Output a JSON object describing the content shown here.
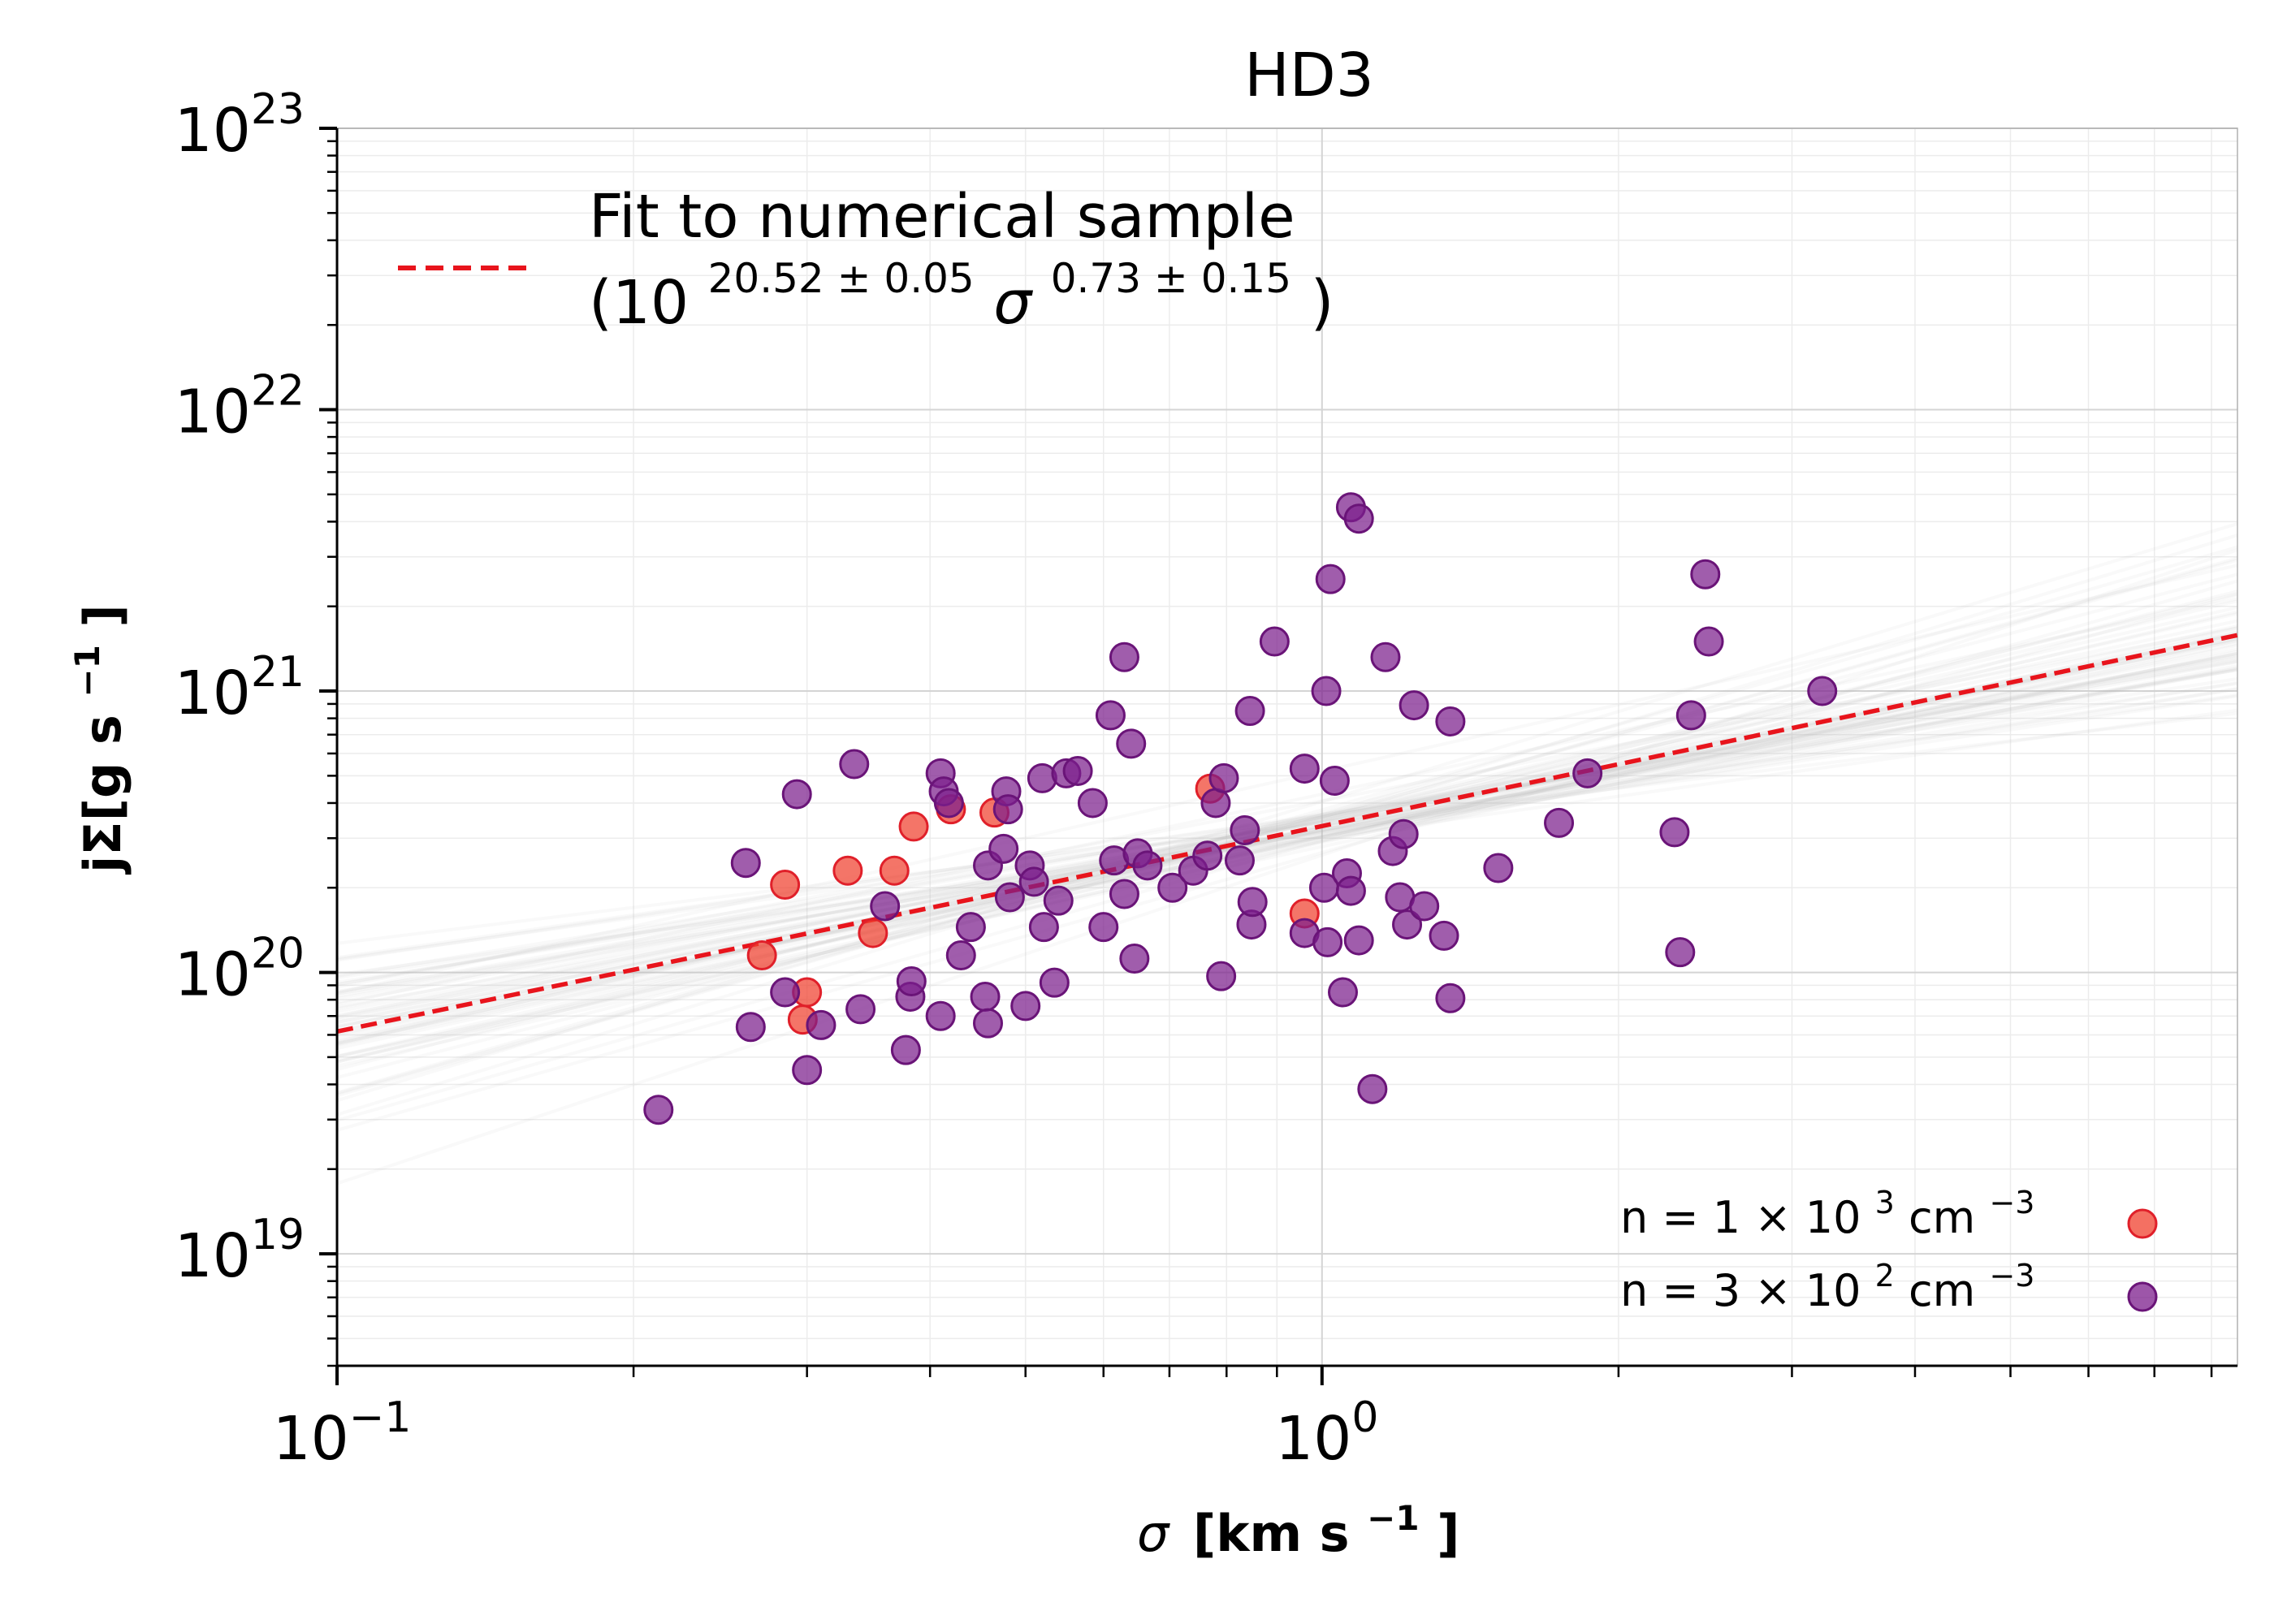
{
  "chart_data": {
    "type": "scatter",
    "title": "HD3",
    "xlabel": {
      "symbol": "σ",
      "unit": "[km s",
      "exp": "−1",
      "close": "]"
    },
    "ylabel": {
      "text": "jΣ[g s",
      "exp": "−1",
      "close": "]"
    },
    "x_scale": "log",
    "y_scale": "log",
    "xlim": [
      0.1,
      8.5
    ],
    "ylim": [
      4e+18,
      1e+23
    ],
    "x_ticks": [
      {
        "value": 0.1,
        "base": "10",
        "exp": "−1"
      },
      {
        "value": 1,
        "base": "10",
        "exp": "0"
      }
    ],
    "y_ticks": [
      {
        "value": 1e+19,
        "base": "10",
        "exp": "19"
      },
      {
        "value": 1e+20,
        "base": "10",
        "exp": "20"
      },
      {
        "value": 1e+21,
        "base": "10",
        "exp": "21"
      },
      {
        "value": 1e+22,
        "base": "10",
        "exp": "22"
      },
      {
        "value": 1e+23,
        "base": "10",
        "exp": "23"
      }
    ],
    "grid": true,
    "fit": {
      "label_line1": "Fit to numerical sample",
      "label_open": "(10",
      "label_exp1": "20.52 ± 0.05",
      "label_sigma": "σ",
      "label_exp2": "0.73 ± 0.15",
      "label_close": ")",
      "log_amplitude": 20.52,
      "slope": 0.73,
      "log_amplitude_err": 0.05,
      "slope_err": 0.15,
      "color": "#e8141c"
    },
    "series": [
      {
        "name": "n = 1 × 10³ cm⁻³",
        "legend": {
          "prefix": "n  = 1 × 10",
          "exp": "3",
          "suffix": " cm",
          "suffix_exp": "−3"
        },
        "color": "#f0402e",
        "points": [
          [
            0.27,
            1.15e+20
          ],
          [
            0.285,
            2.05e+20
          ],
          [
            0.3,
            8.5e+19
          ],
          [
            0.297,
            6.8e+19
          ],
          [
            0.33,
            2.3e+20
          ],
          [
            0.35,
            1.38e+20
          ],
          [
            0.368,
            2.3e+20
          ],
          [
            0.385,
            3.3e+20
          ],
          [
            0.42,
            3.8e+20
          ],
          [
            0.465,
            3.7e+20
          ],
          [
            0.77,
            4.5e+20
          ],
          [
            0.96,
            1.62e+20
          ]
        ]
      },
      {
        "name": "n = 3 × 10² cm⁻³",
        "legend": {
          "prefix": "n  = 3 × 10",
          "exp": "2",
          "suffix": " cm",
          "suffix_exp": "−3"
        },
        "color": "#7c1e8c",
        "points": [
          [
            0.212,
            3.25e+19
          ],
          [
            0.26,
            2.45e+20
          ],
          [
            0.263,
            6.4e+19
          ],
          [
            0.285,
            8.5e+19
          ],
          [
            0.293,
            4.3e+20
          ],
          [
            0.3,
            4.5e+19
          ],
          [
            0.31,
            6.5e+19
          ],
          [
            0.335,
            5.5e+20
          ],
          [
            0.34,
            7.4e+19
          ],
          [
            0.36,
            1.72e+20
          ],
          [
            0.378,
            5.3e+19
          ],
          [
            0.382,
            8.2e+19
          ],
          [
            0.383,
            9.3e+19
          ],
          [
            0.41,
            5.1e+20
          ],
          [
            0.413,
            4.4e+20
          ],
          [
            0.418,
            4e+20
          ],
          [
            0.41,
            7e+19
          ],
          [
            0.43,
            1.15e+20
          ],
          [
            0.44,
            1.45e+20
          ],
          [
            0.455,
            8.2e+19
          ],
          [
            0.458,
            6.6e+19
          ],
          [
            0.458,
            2.4e+20
          ],
          [
            0.475,
            2.75e+20
          ],
          [
            0.478,
            4.4e+20
          ],
          [
            0.48,
            3.8e+20
          ],
          [
            0.482,
            1.85e+20
          ],
          [
            0.5,
            7.6e+19
          ],
          [
            0.505,
            2.4e+20
          ],
          [
            0.51,
            2.1e+20
          ],
          [
            0.52,
            4.9e+20
          ],
          [
            0.522,
            1.45e+20
          ],
          [
            0.535,
            9.2e+19
          ],
          [
            0.54,
            1.8e+20
          ],
          [
            0.55,
            5.1e+20
          ],
          [
            0.565,
            5.2e+20
          ],
          [
            0.585,
            4e+20
          ],
          [
            0.6,
            1.45e+20
          ],
          [
            0.61,
            8.2e+20
          ],
          [
            0.615,
            2.5e+20
          ],
          [
            0.63,
            1.9e+20
          ],
          [
            0.63,
            1.32e+21
          ],
          [
            0.64,
            6.5e+20
          ],
          [
            0.645,
            1.12e+20
          ],
          [
            0.65,
            2.65e+20
          ],
          [
            0.665,
            2.4e+20
          ],
          [
            0.705,
            2e+20
          ],
          [
            0.74,
            2.3e+20
          ],
          [
            0.765,
            2.6e+20
          ],
          [
            0.78,
            4e+20
          ],
          [
            0.79,
            9.7e+19
          ],
          [
            0.795,
            4.9e+20
          ],
          [
            0.825,
            2.5e+20
          ],
          [
            0.835,
            3.2e+20
          ],
          [
            0.845,
            8.5e+20
          ],
          [
            0.848,
            1.48e+20
          ],
          [
            0.85,
            1.78e+20
          ],
          [
            0.895,
            1.5e+21
          ],
          [
            0.96,
            1.38e+20
          ],
          [
            0.96,
            5.3e+20
          ],
          [
            1.005,
            2e+20
          ],
          [
            1.01,
            1e+21
          ],
          [
            1.013,
            1.28e+20
          ],
          [
            1.02,
            2.5e+21
          ],
          [
            1.03,
            4.8e+20
          ],
          [
            1.05,
            8.5e+19
          ],
          [
            1.06,
            2.25e+20
          ],
          [
            1.07,
            1.95e+20
          ],
          [
            1.07,
            4.5e+21
          ],
          [
            1.09,
            4.1e+21
          ],
          [
            1.09,
            1.3e+20
          ],
          [
            1.125,
            3.85e+19
          ],
          [
            1.16,
            1.32e+21
          ],
          [
            1.18,
            2.7e+20
          ],
          [
            1.2,
            1.85e+20
          ],
          [
            1.21,
            3.1e+20
          ],
          [
            1.22,
            1.48e+20
          ],
          [
            1.24,
            8.9e+20
          ],
          [
            1.27,
            1.72e+20
          ],
          [
            1.33,
            1.35e+20
          ],
          [
            1.35,
            7.8e+20
          ],
          [
            1.35,
            8.1e+19
          ],
          [
            1.51,
            2.35e+20
          ],
          [
            1.74,
            3.4e+20
          ],
          [
            1.86,
            5.1e+20
          ],
          [
            2.28,
            3.15e+20
          ],
          [
            2.31,
            1.18e+20
          ],
          [
            2.37,
            8.2e+20
          ],
          [
            2.45,
            2.6e+21
          ],
          [
            2.47,
            1.5e+21
          ],
          [
            3.22,
            1e+21
          ]
        ]
      }
    ]
  }
}
